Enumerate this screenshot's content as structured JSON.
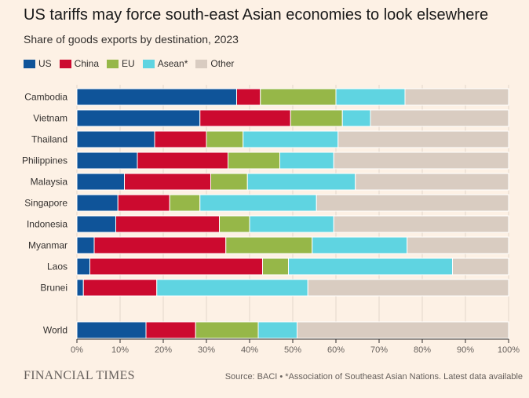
{
  "title": "US tariffs may force south-east Asian economies to look elsewhere",
  "subtitle": "Share of goods exports by destination, 2023",
  "footer": {
    "brand": "FINANCIAL TIMES",
    "source": "Source: BACI • *Association of Southeast Asian Nations. Latest data available"
  },
  "chart_data": {
    "type": "bar",
    "orientation": "horizontal",
    "stacked": true,
    "title": "US tariffs may force south-east Asian economies to look elsewhere",
    "subtitle": "Share of goods exports by destination, 2023",
    "xlim": [
      0,
      100
    ],
    "x_ticks": [
      "0%",
      "10%",
      "20%",
      "30%",
      "40%",
      "50%",
      "60%",
      "70%",
      "80%",
      "90%",
      "100%"
    ],
    "legend_position": "top-left",
    "grid": "vertical",
    "categories": [
      "Cambodia",
      "Vietnam",
      "Thailand",
      "Philippines",
      "Malaysia",
      "Singapore",
      "Indonesia",
      "Myanmar",
      "Laos",
      "Brunei",
      "World"
    ],
    "series": [
      {
        "name": "US",
        "color": "#0f5499",
        "values": [
          37,
          28.5,
          18,
          14,
          11,
          9.5,
          9,
          4,
          3,
          1.5,
          16
        ]
      },
      {
        "name": "China",
        "color": "#cc0a2f",
        "values": [
          5.5,
          21,
          12,
          21,
          20,
          12,
          24,
          30.5,
          40,
          17,
          11.5
        ]
      },
      {
        "name": "EU",
        "color": "#96b748",
        "values": [
          17.5,
          12,
          8.5,
          12,
          8.5,
          7,
          7,
          20,
          6,
          0,
          14.5
        ]
      },
      {
        "name": "Asean*",
        "color": "#5fd4e1",
        "values": [
          16,
          6.5,
          22,
          12.5,
          25,
          27,
          19.5,
          22,
          38,
          35,
          9
        ]
      },
      {
        "name": "Other",
        "color": "#d9ccc1",
        "values": [
          24,
          32,
          39.5,
          40.5,
          35.5,
          44.5,
          40.5,
          23.5,
          13,
          46.5,
          49
        ]
      }
    ]
  }
}
